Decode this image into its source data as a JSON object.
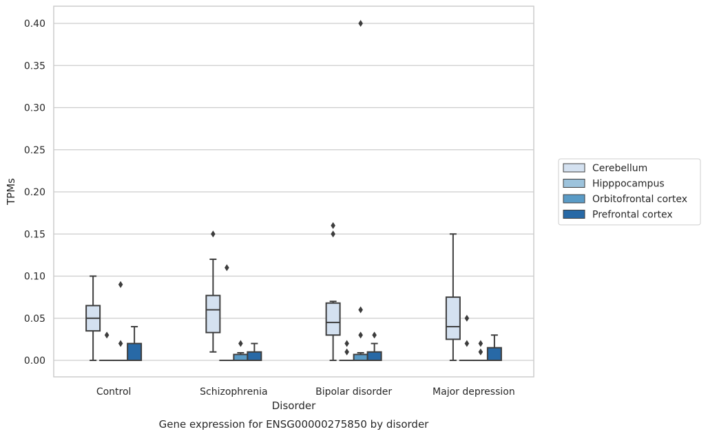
{
  "chart_data": {
    "type": "box",
    "title": "",
    "caption": "Gene expression for ENSG00000275850 by disorder",
    "xlabel": "Disorder",
    "ylabel": "TPMs",
    "ylim": [
      -0.02,
      0.42
    ],
    "yticks": [
      "0.00",
      "0.05",
      "0.10",
      "0.15",
      "0.20",
      "0.25",
      "0.30",
      "0.35",
      "0.40"
    ],
    "grid": "horizontal",
    "legend_position": "right",
    "categories": [
      "Control",
      "Schizophrenia",
      "Bipolar disorder",
      "Major depression"
    ],
    "series": [
      {
        "name": "Cerebellum",
        "color": "#d4e1f0",
        "boxes": [
          {
            "q1": 0.035,
            "median": 0.05,
            "q3": 0.065,
            "whisker_low": 0.0,
            "whisker_high": 0.1,
            "outliers": []
          },
          {
            "q1": 0.033,
            "median": 0.06,
            "q3": 0.077,
            "whisker_low": 0.01,
            "whisker_high": 0.12,
            "outliers": [
              0.15
            ]
          },
          {
            "q1": 0.03,
            "median": 0.045,
            "q3": 0.068,
            "whisker_low": 0.0,
            "whisker_high": 0.07,
            "outliers": [
              0.15,
              0.16
            ]
          },
          {
            "q1": 0.025,
            "median": 0.04,
            "q3": 0.075,
            "whisker_low": 0.0,
            "whisker_high": 0.15,
            "outliers": []
          }
        ]
      },
      {
        "name": "Hipppocampus",
        "color": "#9dc3dc",
        "boxes": [
          {
            "q1": 0.0,
            "median": 0.0,
            "q3": 0.0,
            "whisker_low": 0.0,
            "whisker_high": 0.0,
            "outliers": [
              0.03
            ]
          },
          {
            "q1": 0.0,
            "median": 0.0,
            "q3": 0.0,
            "whisker_low": 0.0,
            "whisker_high": 0.0,
            "outliers": [
              0.11
            ]
          },
          {
            "q1": 0.0,
            "median": 0.0,
            "q3": 0.0,
            "whisker_low": 0.0,
            "whisker_high": 0.0,
            "outliers": [
              0.01,
              0.02
            ]
          },
          {
            "q1": 0.0,
            "median": 0.0,
            "q3": 0.0,
            "whisker_low": 0.0,
            "whisker_high": 0.0,
            "outliers": [
              0.02,
              0.05
            ]
          }
        ]
      },
      {
        "name": "Orbitofrontal cortex",
        "color": "#5a9bc6",
        "boxes": [
          {
            "q1": 0.0,
            "median": 0.0,
            "q3": 0.0,
            "whisker_low": 0.0,
            "whisker_high": 0.0,
            "outliers": [
              0.02,
              0.09
            ]
          },
          {
            "q1": 0.0,
            "median": 0.0,
            "q3": 0.007,
            "whisker_low": 0.0,
            "whisker_high": 0.009,
            "outliers": [
              0.02
            ]
          },
          {
            "q1": 0.0,
            "median": 0.0,
            "q3": 0.007,
            "whisker_low": 0.0,
            "whisker_high": 0.009,
            "outliers": [
              0.03,
              0.06,
              0.4
            ]
          },
          {
            "q1": 0.0,
            "median": 0.0,
            "q3": 0.0,
            "whisker_low": 0.0,
            "whisker_high": 0.0,
            "outliers": [
              0.01,
              0.02
            ]
          }
        ]
      },
      {
        "name": "Prefrontal cortex",
        "color": "#2869a6",
        "boxes": [
          {
            "q1": 0.0,
            "median": 0.0,
            "q3": 0.02,
            "whisker_low": 0.0,
            "whisker_high": 0.04,
            "outliers": []
          },
          {
            "q1": 0.0,
            "median": 0.0,
            "q3": 0.01,
            "whisker_low": 0.0,
            "whisker_high": 0.02,
            "outliers": []
          },
          {
            "q1": 0.0,
            "median": 0.0,
            "q3": 0.01,
            "whisker_low": 0.0,
            "whisker_high": 0.02,
            "outliers": [
              0.03
            ]
          },
          {
            "q1": 0.0,
            "median": 0.0,
            "q3": 0.015,
            "whisker_low": 0.0,
            "whisker_high": 0.03,
            "outliers": []
          }
        ]
      }
    ]
  }
}
